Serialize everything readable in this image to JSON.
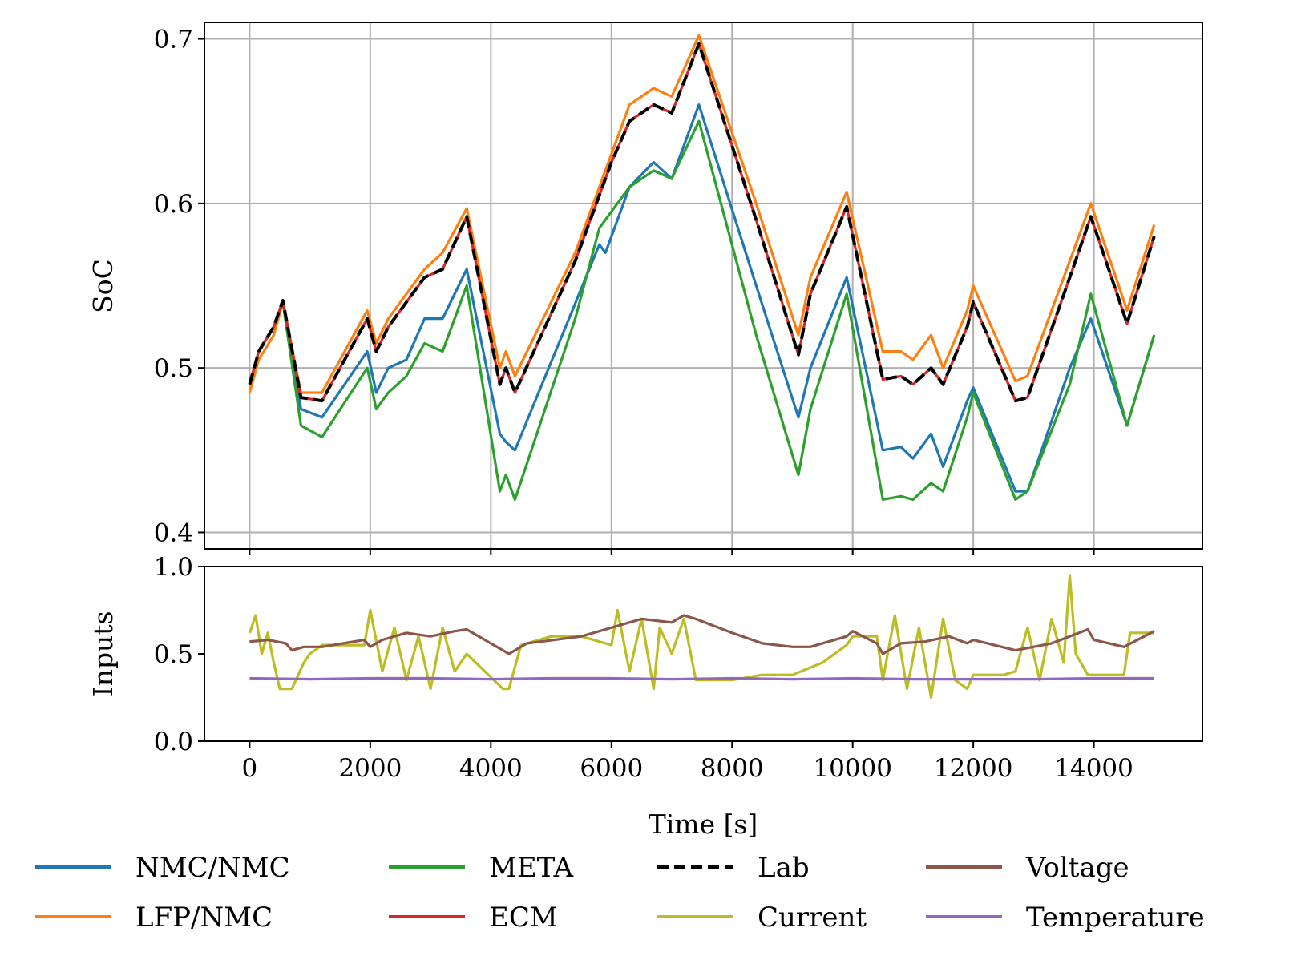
{
  "chart_data": [
    {
      "type": "line",
      "ylabel": "SoC",
      "xlim": [
        -750,
        15800
      ],
      "ylim": [
        0.39,
        0.71
      ],
      "xticks": [
        0,
        2000,
        4000,
        6000,
        8000,
        10000,
        12000,
        14000
      ],
      "yticks": [
        0.4,
        0.5,
        0.6,
        0.7
      ],
      "ytick_labels": [
        "0.4",
        "0.5",
        "0.6",
        "0.7"
      ],
      "grid": true,
      "series": [
        {
          "name": "NMC/NMC",
          "color": "#1f77b4",
          "style": "solid",
          "x": [
            0,
            150,
            400,
            550,
            850,
            1200,
            1950,
            2100,
            2300,
            2600,
            2900,
            3200,
            3600,
            4150,
            4250,
            4400,
            5800,
            5900,
            6300,
            6700,
            7000,
            7450,
            8400,
            9100,
            9300,
            9900,
            10500,
            10800,
            11000,
            11300,
            11500,
            11900,
            12000,
            12700,
            12900,
            13600,
            13950,
            14550,
            15000
          ],
          "y": [
            0.49,
            0.51,
            0.525,
            0.54,
            0.475,
            0.47,
            0.51,
            0.485,
            0.5,
            0.505,
            0.53,
            0.53,
            0.56,
            0.46,
            0.455,
            0.45,
            0.575,
            0.57,
            0.61,
            0.625,
            0.615,
            0.66,
            0.55,
            0.47,
            0.5,
            0.555,
            0.45,
            0.452,
            0.445,
            0.46,
            0.44,
            0.48,
            0.488,
            0.425,
            0.425,
            0.5,
            0.53,
            0.465,
            0.52
          ]
        },
        {
          "name": "LFP/NMC",
          "color": "#ff7f0e",
          "style": "solid",
          "x": [
            0,
            150,
            400,
            550,
            850,
            1200,
            1950,
            2100,
            2300,
            2600,
            2900,
            3200,
            3600,
            4150,
            4250,
            4400,
            5400,
            6000,
            6300,
            6700,
            7000,
            7450,
            8400,
            9100,
            9300,
            9900,
            10500,
            10800,
            11000,
            11300,
            11500,
            11900,
            12000,
            12700,
            12900,
            13600,
            13950,
            14550,
            15000
          ],
          "y": [
            0.485,
            0.505,
            0.52,
            0.54,
            0.485,
            0.485,
            0.535,
            0.515,
            0.53,
            0.545,
            0.56,
            0.57,
            0.597,
            0.5,
            0.51,
            0.495,
            0.57,
            0.63,
            0.66,
            0.67,
            0.665,
            0.702,
            0.6,
            0.52,
            0.555,
            0.607,
            0.51,
            0.51,
            0.505,
            0.52,
            0.5,
            0.535,
            0.55,
            0.492,
            0.495,
            0.565,
            0.6,
            0.535,
            0.587
          ]
        },
        {
          "name": "META",
          "color": "#2ca02c",
          "style": "solid",
          "x": [
            0,
            150,
            400,
            550,
            850,
            1200,
            1950,
            2100,
            2300,
            2600,
            2900,
            3200,
            3600,
            4150,
            4250,
            4400,
            5400,
            5800,
            6300,
            6700,
            7000,
            7450,
            8400,
            9100,
            9300,
            9900,
            10500,
            10800,
            11000,
            11300,
            11500,
            11900,
            12000,
            12700,
            12900,
            13600,
            13950,
            14550,
            15000
          ],
          "y": [
            0.49,
            0.51,
            0.525,
            0.54,
            0.465,
            0.458,
            0.5,
            0.475,
            0.485,
            0.495,
            0.515,
            0.51,
            0.55,
            0.425,
            0.435,
            0.42,
            0.53,
            0.585,
            0.61,
            0.62,
            0.615,
            0.65,
            0.52,
            0.435,
            0.475,
            0.545,
            0.42,
            0.422,
            0.42,
            0.43,
            0.425,
            0.47,
            0.485,
            0.42,
            0.425,
            0.49,
            0.545,
            0.465,
            0.52
          ]
        },
        {
          "name": "ECM",
          "color": "#d62728",
          "style": "solid",
          "x": [
            0,
            150,
            400,
            550,
            850,
            1200,
            1950,
            2100,
            2300,
            2600,
            2900,
            3200,
            3600,
            4150,
            4250,
            4400,
            5400,
            6000,
            6300,
            6700,
            7000,
            7450,
            8400,
            9100,
            9300,
            9900,
            10500,
            10800,
            11000,
            11300,
            11500,
            11900,
            12000,
            12700,
            12900,
            13600,
            13950,
            14550,
            15000
          ],
          "y": [
            0.49,
            0.51,
            0.525,
            0.541,
            0.482,
            0.48,
            0.53,
            0.51,
            0.525,
            0.54,
            0.555,
            0.56,
            0.592,
            0.49,
            0.5,
            0.485,
            0.565,
            0.625,
            0.65,
            0.66,
            0.655,
            0.697,
            0.59,
            0.508,
            0.545,
            0.598,
            0.493,
            0.495,
            0.49,
            0.5,
            0.49,
            0.525,
            0.54,
            0.48,
            0.482,
            0.555,
            0.592,
            0.527,
            0.58
          ]
        },
        {
          "name": "Lab",
          "color": "#000000",
          "style": "dashed",
          "x": [
            0,
            150,
            400,
            550,
            850,
            1200,
            1950,
            2100,
            2300,
            2600,
            2900,
            3200,
            3600,
            4150,
            4250,
            4400,
            5400,
            6000,
            6300,
            6700,
            7000,
            7450,
            8400,
            9100,
            9300,
            9900,
            10500,
            10800,
            11000,
            11300,
            11500,
            11900,
            12000,
            12700,
            12900,
            13600,
            13950,
            14550,
            15000
          ],
          "y": [
            0.49,
            0.51,
            0.525,
            0.541,
            0.482,
            0.48,
            0.53,
            0.51,
            0.525,
            0.54,
            0.555,
            0.56,
            0.592,
            0.49,
            0.5,
            0.485,
            0.565,
            0.625,
            0.65,
            0.66,
            0.655,
            0.697,
            0.59,
            0.508,
            0.545,
            0.598,
            0.493,
            0.495,
            0.49,
            0.5,
            0.49,
            0.525,
            0.54,
            0.48,
            0.482,
            0.555,
            0.592,
            0.527,
            0.58
          ]
        }
      ]
    },
    {
      "type": "line",
      "ylabel": "Inputs",
      "xlabel": "Time [s]",
      "xlim": [
        -750,
        15800
      ],
      "ylim": [
        0.0,
        1.0
      ],
      "xticks": [
        0,
        2000,
        4000,
        6000,
        8000,
        10000,
        12000,
        14000
      ],
      "xtick_labels": [
        "0",
        "2000",
        "4000",
        "6000",
        "8000",
        "10000",
        "12000",
        "14000"
      ],
      "yticks": [
        0.0,
        0.5,
        1.0
      ],
      "ytick_labels": [
        "0.0",
        "0.5",
        "1.0"
      ],
      "grid": false,
      "series": [
        {
          "name": "Current",
          "color": "#bcbd22",
          "style": "solid",
          "x": [
            0,
            100,
            200,
            300,
            400,
            500,
            700,
            900,
            1000,
            1200,
            1900,
            2000,
            2200,
            2400,
            2600,
            2800,
            3000,
            3200,
            3400,
            3600,
            4200,
            4300,
            4500,
            5000,
            5500,
            6000,
            6100,
            6300,
            6500,
            6700,
            6800,
            7000,
            7200,
            7400,
            7600,
            8000,
            8500,
            9000,
            9500,
            9900,
            10000,
            10400,
            10500,
            10700,
            10900,
            11100,
            11300,
            11500,
            11700,
            11900,
            12000,
            12500,
            12700,
            12900,
            13100,
            13300,
            13500,
            13600,
            13700,
            13900,
            14500,
            14600,
            15000
          ],
          "y": [
            0.62,
            0.72,
            0.5,
            0.62,
            0.45,
            0.3,
            0.3,
            0.45,
            0.5,
            0.55,
            0.55,
            0.75,
            0.4,
            0.65,
            0.35,
            0.6,
            0.3,
            0.65,
            0.4,
            0.5,
            0.3,
            0.3,
            0.55,
            0.6,
            0.6,
            0.55,
            0.75,
            0.4,
            0.7,
            0.3,
            0.65,
            0.5,
            0.7,
            0.35,
            0.35,
            0.35,
            0.38,
            0.38,
            0.45,
            0.55,
            0.6,
            0.6,
            0.35,
            0.72,
            0.3,
            0.65,
            0.25,
            0.7,
            0.35,
            0.3,
            0.38,
            0.38,
            0.4,
            0.65,
            0.35,
            0.7,
            0.45,
            0.95,
            0.5,
            0.38,
            0.38,
            0.62,
            0.62
          ]
        },
        {
          "name": "Voltage",
          "color": "#8c564b",
          "style": "solid",
          "x": [
            0,
            300,
            600,
            700,
            900,
            1200,
            1900,
            2000,
            2200,
            2600,
            3000,
            3400,
            3600,
            4200,
            4300,
            4600,
            5500,
            6000,
            6500,
            7000,
            7200,
            7400,
            8000,
            8500,
            9000,
            9300,
            9900,
            10000,
            10400,
            10500,
            10800,
            11200,
            11600,
            11900,
            12000,
            12700,
            13300,
            13900,
            14000,
            14500,
            15000
          ],
          "y": [
            0.57,
            0.58,
            0.56,
            0.52,
            0.54,
            0.54,
            0.58,
            0.54,
            0.58,
            0.62,
            0.6,
            0.63,
            0.64,
            0.52,
            0.5,
            0.56,
            0.6,
            0.65,
            0.7,
            0.68,
            0.72,
            0.7,
            0.62,
            0.56,
            0.54,
            0.54,
            0.6,
            0.63,
            0.56,
            0.5,
            0.56,
            0.57,
            0.6,
            0.56,
            0.58,
            0.52,
            0.56,
            0.64,
            0.58,
            0.54,
            0.63
          ]
        },
        {
          "name": "Temperature",
          "color": "#9467bd",
          "style": "solid",
          "x": [
            0,
            1000,
            2000,
            3000,
            4000,
            5000,
            6000,
            7000,
            8000,
            9000,
            10000,
            11000,
            12000,
            13000,
            14000,
            15000
          ],
          "y": [
            0.36,
            0.355,
            0.36,
            0.36,
            0.355,
            0.36,
            0.36,
            0.355,
            0.36,
            0.355,
            0.36,
            0.355,
            0.355,
            0.355,
            0.36,
            0.36
          ]
        }
      ]
    }
  ],
  "legend": {
    "placement": "bottom",
    "columns": [
      [
        {
          "label": "NMC/NMC",
          "color": "#1f77b4",
          "style": "solid"
        },
        {
          "label": "LFP/NMC",
          "color": "#ff7f0e",
          "style": "solid"
        }
      ],
      [
        {
          "label": "META",
          "color": "#2ca02c",
          "style": "solid"
        },
        {
          "label": "ECM",
          "color": "#d62728",
          "style": "solid"
        }
      ],
      [
        {
          "label": "Lab",
          "color": "#000000",
          "style": "dashed"
        },
        {
          "label": "Current",
          "color": "#bcbd22",
          "style": "solid"
        }
      ],
      [
        {
          "label": "Voltage",
          "color": "#8c564b",
          "style": "solid"
        },
        {
          "label": "Temperature",
          "color": "#9467bd",
          "style": "solid"
        }
      ]
    ]
  }
}
